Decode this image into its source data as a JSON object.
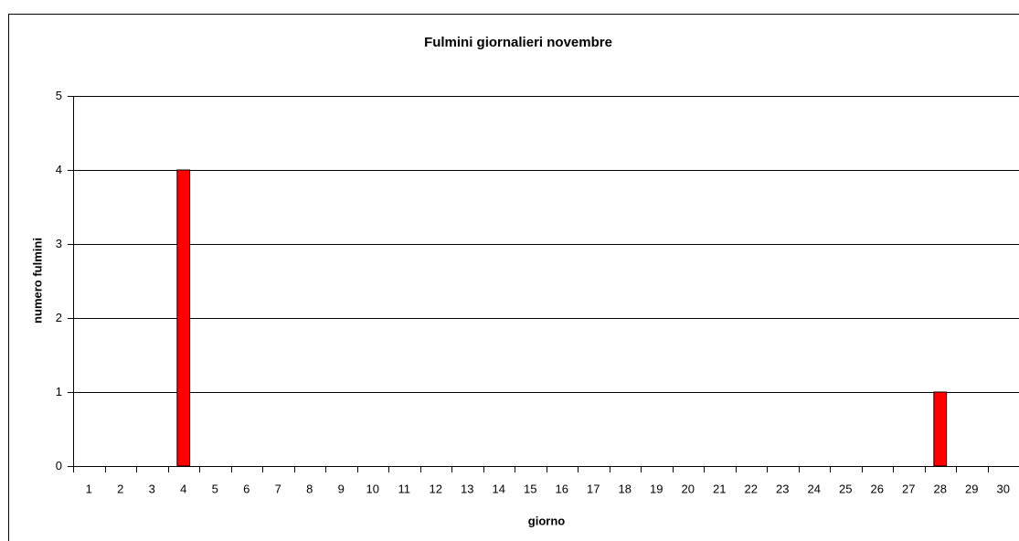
{
  "chart_data": {
    "type": "bar",
    "title": "Fulmini giornalieri novembre",
    "xlabel": "giorno",
    "ylabel": "numero fulmini",
    "categories": [
      "1",
      "2",
      "3",
      "4",
      "5",
      "6",
      "7",
      "8",
      "9",
      "10",
      "11",
      "12",
      "13",
      "14",
      "15",
      "16",
      "17",
      "18",
      "19",
      "20",
      "21",
      "22",
      "23",
      "24",
      "25",
      "26",
      "27",
      "28",
      "29",
      "30"
    ],
    "values": [
      0,
      0,
      0,
      4,
      0,
      0,
      0,
      0,
      0,
      0,
      0,
      0,
      0,
      0,
      0,
      0,
      0,
      0,
      0,
      0,
      0,
      0,
      0,
      0,
      0,
      0,
      0,
      1,
      0,
      0
    ],
    "color": "#ff0000",
    "ylim": [
      0,
      5
    ],
    "yticks": [
      0,
      1,
      2,
      3,
      4,
      5
    ],
    "grid": true
  }
}
